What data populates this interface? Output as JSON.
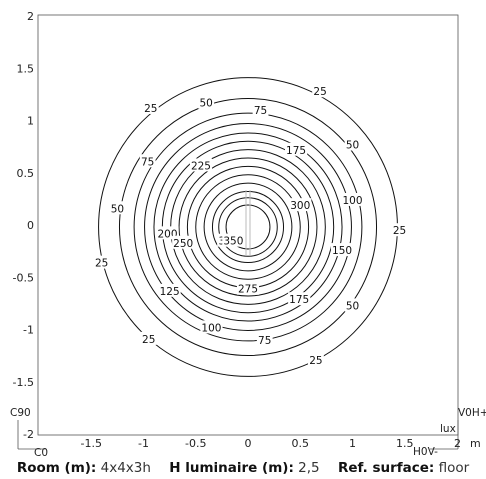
{
  "chart_data": {
    "type": "contour",
    "title": "",
    "xlabel": "",
    "ylabel": "",
    "unit_label": "lux",
    "length_unit": "m",
    "xlim": [
      -2,
      2
    ],
    "ylim": [
      -2,
      2
    ],
    "x_ticks": [
      "-1.5",
      "-1",
      "-0.5",
      "0",
      "0.5",
      "1",
      "1.5"
    ],
    "y_ticks": [
      "2",
      "1.5",
      "1",
      "0.5",
      "0",
      "-0.5",
      "-1",
      "-1.5",
      "-2"
    ],
    "x_end_tick": "2",
    "isolines": [
      {
        "level": 25,
        "radius": 1.43
      },
      {
        "level": 50,
        "radius": 1.23
      },
      {
        "level": 75,
        "radius": 1.09
      },
      {
        "level": 100,
        "radius": 0.99
      },
      {
        "level": 125,
        "radius": 0.9
      },
      {
        "level": 150,
        "radius": 0.82
      },
      {
        "level": 175,
        "radius": 0.74
      },
      {
        "level": 200,
        "radius": 0.66
      },
      {
        "level": 225,
        "radius": 0.58
      },
      {
        "level": 250,
        "radius": 0.5
      },
      {
        "level": 275,
        "radius": 0.42
      },
      {
        "level": 300,
        "radius": 0.34
      },
      {
        "level": 325,
        "radius": 0.28
      },
      {
        "level": 350,
        "radius": 0.21
      }
    ],
    "contour_labels": [
      {
        "text": "25",
        "x": 0.69,
        "y": 1.28
      },
      {
        "text": "50",
        "x": -0.4,
        "y": 1.17
      },
      {
        "text": "75",
        "x": 0.12,
        "y": 1.1
      },
      {
        "text": "25",
        "x": -0.93,
        "y": 1.12
      },
      {
        "text": "50",
        "x": 1.0,
        "y": 0.77
      },
      {
        "text": "175",
        "x": 0.46,
        "y": 0.72
      },
      {
        "text": "75",
        "x": -0.96,
        "y": 0.61
      },
      {
        "text": "225",
        "x": -0.45,
        "y": 0.57
      },
      {
        "text": "300",
        "x": 0.5,
        "y": 0.19
      },
      {
        "text": "100",
        "x": 1.0,
        "y": 0.24
      },
      {
        "text": "50",
        "x": -1.25,
        "y": 0.16
      },
      {
        "text": "25",
        "x": 1.45,
        "y": -0.05
      },
      {
        "text": "200",
        "x": -0.77,
        "y": -0.08
      },
      {
        "text": "250",
        "x": -0.62,
        "y": -0.17
      },
      {
        "text": "3",
        "x": -0.25,
        "y": -0.15
      },
      {
        "text": "350",
        "x": -0.14,
        "y": -0.15
      },
      {
        "text": "150",
        "x": 0.9,
        "y": -0.24
      },
      {
        "text": "25",
        "x": -1.4,
        "y": -0.36
      },
      {
        "text": "275",
        "x": 0.0,
        "y": -0.61
      },
      {
        "text": "125",
        "x": -0.75,
        "y": -0.63
      },
      {
        "text": "175",
        "x": 0.49,
        "y": -0.71
      },
      {
        "text": "50",
        "x": 1.0,
        "y": -0.77
      },
      {
        "text": "100",
        "x": -0.35,
        "y": -0.98
      },
      {
        "text": "75",
        "x": 0.16,
        "y": -1.1
      },
      {
        "text": "25",
        "x": -0.95,
        "y": -1.09
      },
      {
        "text": "25",
        "x": 0.65,
        "y": -1.29
      }
    ],
    "corner_labels": {
      "c90": "C90",
      "c0": "C0",
      "h0v": "H0V-",
      "v0h": "V0H+"
    }
  },
  "caption": {
    "room_label": "Room (m):",
    "room_value": "4x4x3h",
    "luminaire_label": "H luminaire (m):",
    "luminaire_value": "2,5",
    "surface_label": "Ref. surface:",
    "surface_value": "floor"
  }
}
